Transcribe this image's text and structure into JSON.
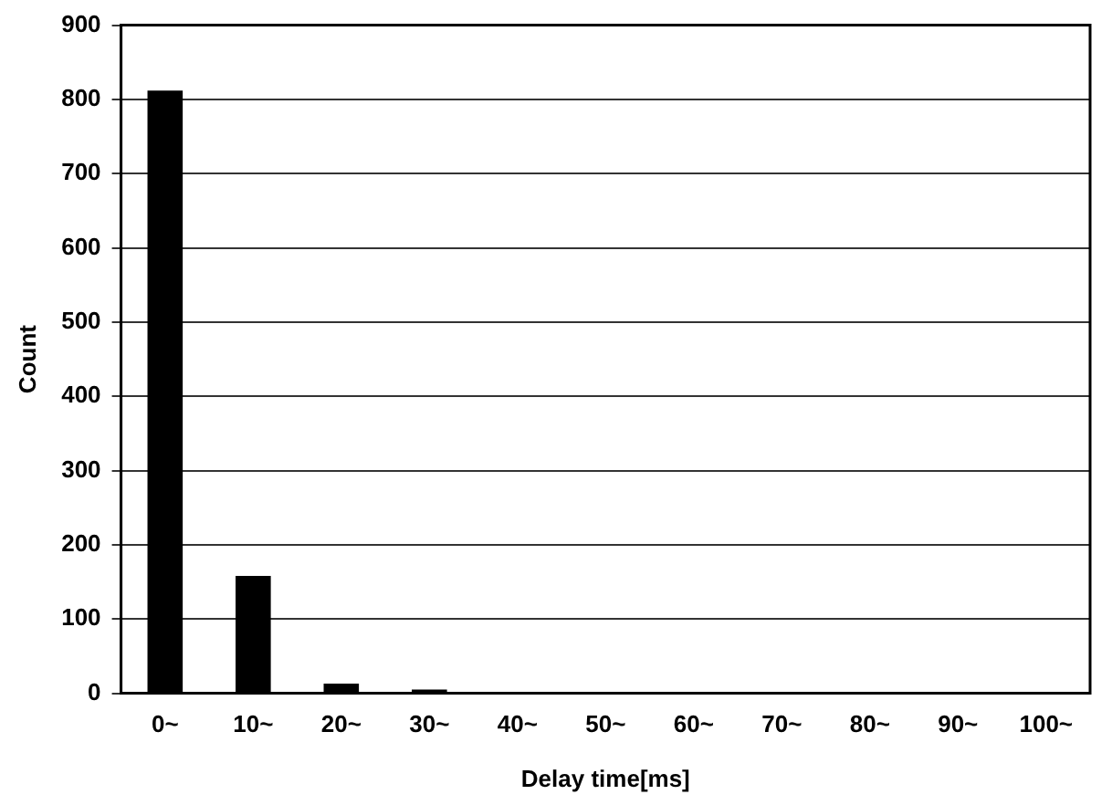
{
  "chart_data": {
    "type": "bar",
    "xlabel": "Delay time[ms]",
    "ylabel": "Count",
    "categories": [
      "0~",
      "10~",
      "20~",
      "30~",
      "40~",
      "50~",
      "60~",
      "70~",
      "80~",
      "90~",
      "100~"
    ],
    "values": [
      812,
      158,
      13,
      5,
      0,
      0,
      0,
      0,
      0,
      0,
      0
    ],
    "color": "#000000",
    "ylim": [
      0,
      900
    ],
    "yticks": [
      0,
      100,
      200,
      300,
      400,
      500,
      600,
      700,
      800,
      900
    ],
    "grid": "y"
  }
}
